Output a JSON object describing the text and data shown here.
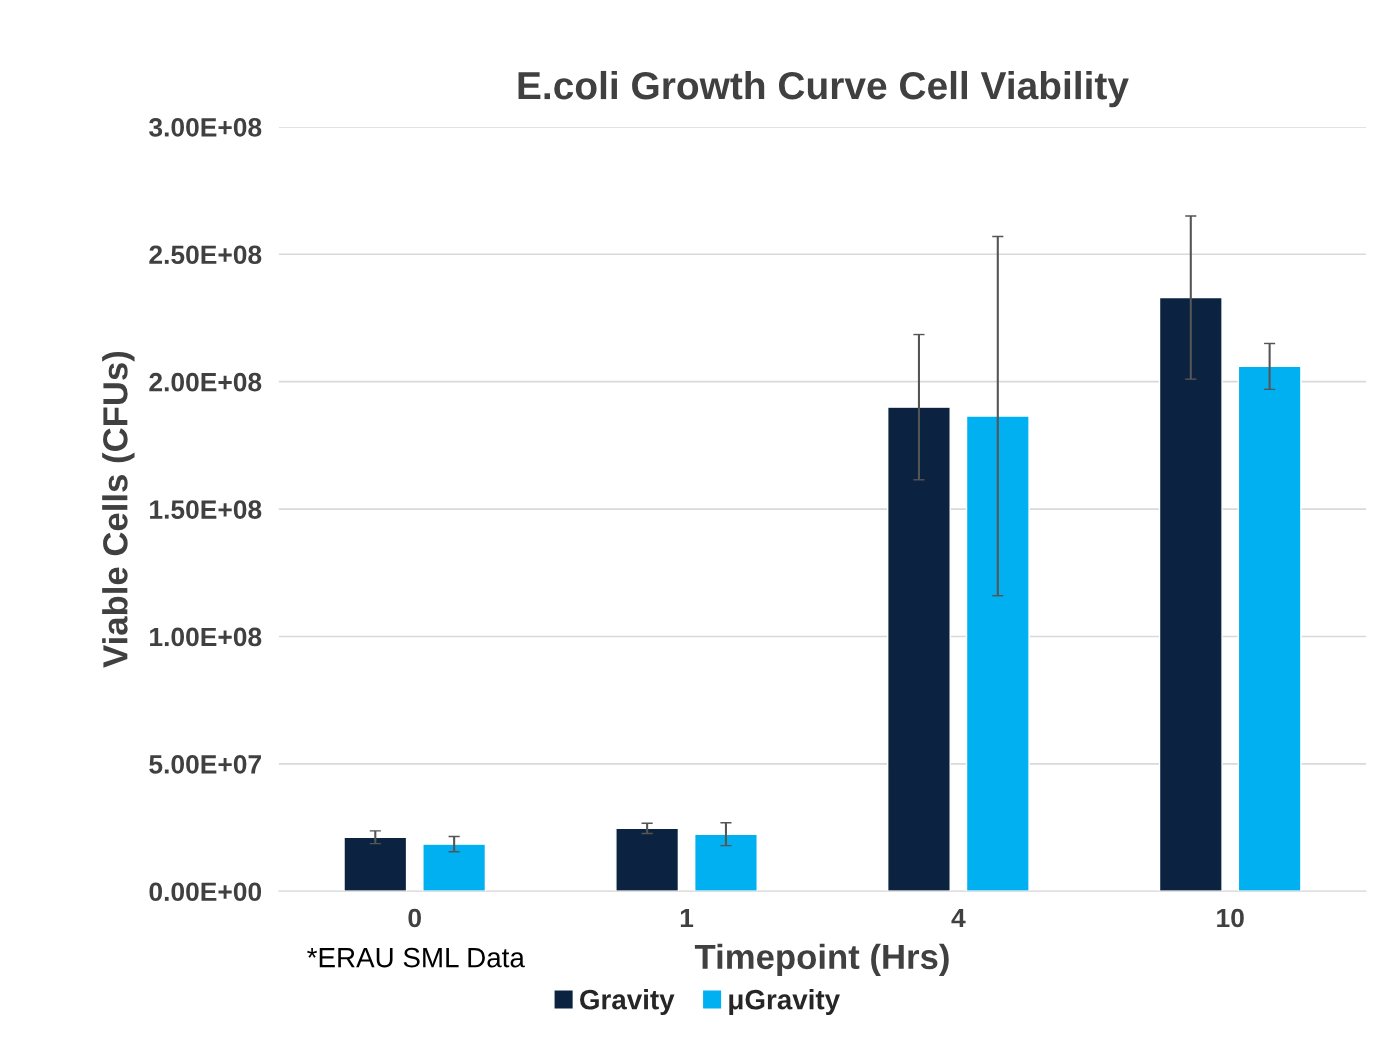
{
  "chart_data": {
    "type": "bar",
    "title": "E.coli Growth Curve Cell Viability",
    "xlabel": "Timepoint (Hrs)",
    "ylabel": "Viable Cells (CFUs)",
    "categories": [
      "0",
      "1",
      "4",
      "10"
    ],
    "series": [
      {
        "name": "Gravity",
        "color": "#0b2340",
        "values": [
          21200000,
          24700000,
          190000000,
          233000000
        ],
        "errors": [
          2500000,
          2000000,
          28500000,
          32000000
        ]
      },
      {
        "name": "μGravity",
        "color": "#00b0f0",
        "values": [
          18500000,
          22400000,
          186500000,
          206000000
        ],
        "errors": [
          3000000,
          4500000,
          70500000,
          9000000
        ]
      }
    ],
    "ylim": [
      0,
      300000000
    ],
    "yticks": [
      {
        "value": 0,
        "label": "0.00E+00"
      },
      {
        "value": 50000000,
        "label": "5.00E+07"
      },
      {
        "value": 100000000,
        "label": "1.00E+08"
      },
      {
        "value": 150000000,
        "label": "1.50E+08"
      },
      {
        "value": 200000000,
        "label": "2.00E+08"
      },
      {
        "value": 250000000,
        "label": "2.50E+08"
      },
      {
        "value": 300000000,
        "label": "3.00E+08"
      }
    ],
    "grid": "y",
    "legend": "bottom",
    "annotations": [
      "*ERAU SML Data"
    ]
  }
}
